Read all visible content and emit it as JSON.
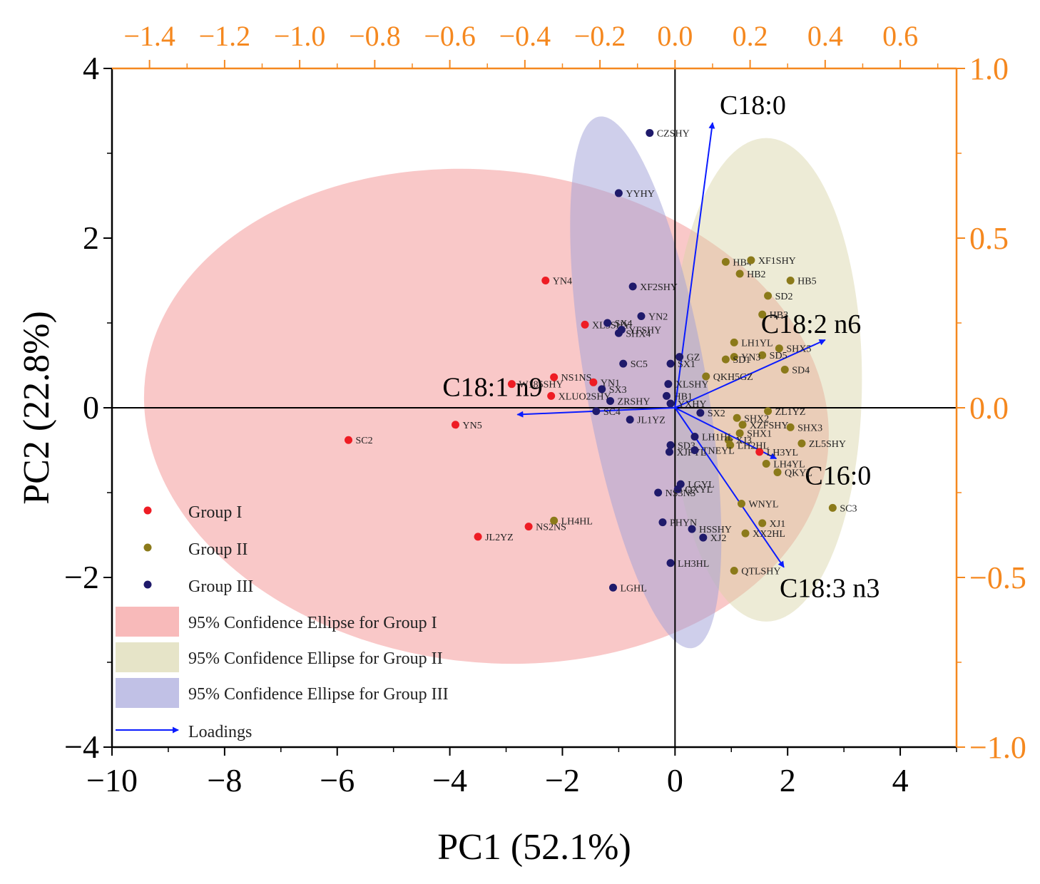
{
  "chart_data": {
    "type": "scatter",
    "subtype": "pca-biplot",
    "xlabel": "PC1 (52.1%)",
    "ylabel": "PC2 (22.8%)",
    "xlim": [
      -10,
      5
    ],
    "ylim": [
      -4,
      4
    ],
    "x_ticks": [
      -10,
      -8,
      -6,
      -4,
      -2,
      0,
      2,
      4
    ],
    "x_tick_labels": [
      "−10",
      "−8",
      "−6",
      "−4",
      "−2",
      "0",
      "2",
      "4"
    ],
    "y_ticks": [
      -4,
      -2,
      0,
      2,
      4
    ],
    "y_tick_labels": [
      "−4",
      "−2",
      "0",
      "2",
      "4"
    ],
    "secondary_axes": {
      "color": "#f5881f",
      "top_lim": [
        -1.5,
        0.75
      ],
      "top_ticks": [
        -1.4,
        -1.2,
        -1.0,
        -0.8,
        -0.6,
        -0.4,
        -0.2,
        0.0,
        0.2,
        0.4,
        0.6
      ],
      "top_tick_labels": [
        "−1.4",
        "−1.2",
        "−1.0",
        "−0.8",
        "−0.6",
        "−0.4",
        "−0.2",
        "0.0",
        "0.2",
        "0.4",
        "0.6"
      ],
      "right_lim": [
        -1.0,
        1.0
      ],
      "right_ticks": [
        -1.0,
        -0.5,
        0.0,
        0.5,
        1.0
      ],
      "right_tick_labels": [
        "−1.0",
        "−0.5",
        "0.0",
        "0.5",
        "1.0"
      ]
    },
    "groups": [
      {
        "name": "Group I",
        "color": "#ee1c24"
      },
      {
        "name": "Group II",
        "color": "#8b7a1a"
      },
      {
        "name": "Group III",
        "color": "#1f1a6b"
      }
    ],
    "points": [
      {
        "label": "SC2",
        "x": -5.8,
        "y": -0.38,
        "group": 0
      },
      {
        "label": "YN5",
        "x": -3.9,
        "y": -0.2,
        "group": 0
      },
      {
        "label": "W185SHY",
        "x": -2.9,
        "y": 0.28,
        "group": 0
      },
      {
        "label": "XLUO2SHY",
        "x": -2.2,
        "y": 0.14,
        "group": 0
      },
      {
        "label": "NS1NS",
        "x": -2.15,
        "y": 0.36,
        "group": 0
      },
      {
        "label": "YN4",
        "x": -2.3,
        "y": 1.5,
        "group": 0
      },
      {
        "label": "XL3SHY",
        "x": -1.6,
        "y": 0.98,
        "group": 0
      },
      {
        "label": "YN1",
        "x": -1.45,
        "y": 0.3,
        "group": 0
      },
      {
        "label": "JL2YZ",
        "x": -3.5,
        "y": -1.52,
        "group": 0
      },
      {
        "label": "NS2NS",
        "x": -2.6,
        "y": -1.4,
        "group": 0
      },
      {
        "label": "LH3YL",
        "x": 1.5,
        "y": -0.52,
        "group": 0
      },
      {
        "label": "LH4HL",
        "x": -2.15,
        "y": -1.33,
        "group": 1
      },
      {
        "label": "SC3",
        "x": 2.8,
        "y": -1.18,
        "group": 1
      },
      {
        "label": "HB4",
        "x": 0.9,
        "y": 1.72,
        "group": 1
      },
      {
        "label": "XF1SHY",
        "x": 1.35,
        "y": 1.74,
        "group": 1
      },
      {
        "label": "HB2",
        "x": 1.15,
        "y": 1.58,
        "group": 1
      },
      {
        "label": "HB5",
        "x": 2.05,
        "y": 1.5,
        "group": 1
      },
      {
        "label": "SD2",
        "x": 1.65,
        "y": 1.32,
        "group": 1
      },
      {
        "label": "HB3",
        "x": 1.55,
        "y": 1.1,
        "group": 1
      },
      {
        "label": "LH1YL",
        "x": 1.05,
        "y": 0.77,
        "group": 1
      },
      {
        "label": "SHX5",
        "x": 1.85,
        "y": 0.7,
        "group": 1
      },
      {
        "label": "SD5",
        "x": 1.55,
        "y": 0.62,
        "group": 1
      },
      {
        "label": "YN3",
        "x": 1.05,
        "y": 0.6,
        "group": 1
      },
      {
        "label": "SD4",
        "x": 1.95,
        "y": 0.45,
        "group": 1
      },
      {
        "label": "SD1",
        "x": 0.9,
        "y": 0.57,
        "group": 1
      },
      {
        "label": "QKH5GZ",
        "x": 0.55,
        "y": 0.37,
        "group": 1
      },
      {
        "label": "ZL1YZ",
        "x": 1.65,
        "y": -0.04,
        "group": 1
      },
      {
        "label": "SHX2",
        "x": 1.1,
        "y": -0.12,
        "group": 1
      },
      {
        "label": "XZFSHY",
        "x": 1.2,
        "y": -0.2,
        "group": 1
      },
      {
        "label": "SHX3",
        "x": 2.05,
        "y": -0.23,
        "group": 1
      },
      {
        "label": "SHX1",
        "x": 1.15,
        "y": -0.3,
        "group": 1
      },
      {
        "label": "ZL5SHY",
        "x": 2.25,
        "y": -0.42,
        "group": 1
      },
      {
        "label": "XJ3",
        "x": 0.95,
        "y": -0.38,
        "group": 1
      },
      {
        "label": "LH2HL",
        "x": 0.98,
        "y": -0.44,
        "group": 1
      },
      {
        "label": "LH4YL",
        "x": 1.62,
        "y": -0.66,
        "group": 1
      },
      {
        "label": "QKYL",
        "x": 1.82,
        "y": -0.76,
        "group": 1
      },
      {
        "label": "WNYL",
        "x": 1.18,
        "y": -1.13,
        "group": 1
      },
      {
        "label": "XJ1",
        "x": 1.55,
        "y": -1.36,
        "group": 1
      },
      {
        "label": "XX2HL",
        "x": 1.25,
        "y": -1.48,
        "group": 1
      },
      {
        "label": "QTLSHY",
        "x": 1.05,
        "y": -1.92,
        "group": 1
      },
      {
        "label": "CZSHY",
        "x": -0.45,
        "y": 3.24,
        "group": 2
      },
      {
        "label": "YYHY",
        "x": -1.0,
        "y": 2.53,
        "group": 2
      },
      {
        "label": "XF2SHY",
        "x": -0.75,
        "y": 1.43,
        "group": 2
      },
      {
        "label": "SX4",
        "x": -1.2,
        "y": 1.0,
        "group": 2
      },
      {
        "label": "YN2",
        "x": -0.6,
        "y": 1.08,
        "group": 2
      },
      {
        "label": "SHX4",
        "x": -1.0,
        "y": 0.88,
        "group": 2
      },
      {
        "label": "SC5",
        "x": -0.92,
        "y": 0.52,
        "group": 2
      },
      {
        "label": "YFSHY",
        "x": -0.95,
        "y": 0.92,
        "group": 2
      },
      {
        "label": "SX1",
        "x": -0.08,
        "y": 0.52,
        "group": 2
      },
      {
        "label": "GZ",
        "x": 0.08,
        "y": 0.6,
        "group": 2
      },
      {
        "label": "XLSHY",
        "x": -0.12,
        "y": 0.28,
        "group": 2
      },
      {
        "label": "SX3",
        "x": -1.3,
        "y": 0.22,
        "group": 2
      },
      {
        "label": "ZRSHY",
        "x": -1.15,
        "y": 0.08,
        "group": 2
      },
      {
        "label": "HB1",
        "x": -0.15,
        "y": 0.14,
        "group": 2
      },
      {
        "label": "YXHY",
        "x": -0.08,
        "y": 0.05,
        "group": 2
      },
      {
        "label": "SC4",
        "x": -1.4,
        "y": -0.04,
        "group": 2
      },
      {
        "label": "JL1YZ",
        "x": -0.8,
        "y": -0.14,
        "group": 2
      },
      {
        "label": "SX2",
        "x": 0.45,
        "y": -0.06,
        "group": 2
      },
      {
        "label": "LH1HL",
        "x": 0.35,
        "y": -0.34,
        "group": 2
      },
      {
        "label": "SD3",
        "x": -0.08,
        "y": -0.44,
        "group": 2
      },
      {
        "label": "XJFYL",
        "x": -0.1,
        "y": -0.52,
        "group": 2
      },
      {
        "label": "TNEYL",
        "x": 0.35,
        "y": -0.5,
        "group": 2
      },
      {
        "label": "LGYL",
        "x": 0.1,
        "y": -0.9,
        "group": 2
      },
      {
        "label": "QXYL",
        "x": 0.05,
        "y": -0.96,
        "group": 2
      },
      {
        "label": "NS3NS",
        "x": -0.3,
        "y": -1.0,
        "group": 2
      },
      {
        "label": "PHYN",
        "x": -0.22,
        "y": -1.35,
        "group": 2
      },
      {
        "label": "HSSHY",
        "x": 0.3,
        "y": -1.43,
        "group": 2
      },
      {
        "label": "XJ2",
        "x": 0.5,
        "y": -1.53,
        "group": 2
      },
      {
        "label": "LH3HL",
        "x": -0.08,
        "y": -1.83,
        "group": 2
      },
      {
        "label": "LGHL",
        "x": -1.1,
        "y": -2.12,
        "group": 2
      }
    ],
    "loadings": [
      {
        "name": "C18:0",
        "x": 0.1,
        "y": 0.84
      },
      {
        "name": "C18:2 n6",
        "x": 0.4,
        "y": 0.2
      },
      {
        "name": "C18:1 n9",
        "x": -0.42,
        "y": -0.02
      },
      {
        "name": "C16:0",
        "x": 0.27,
        "y": -0.15
      },
      {
        "name": "C18:3 n3",
        "x": 0.29,
        "y": -0.47
      }
    ],
    "ellipses": [
      {
        "name": "95% Confidence Ellipse for Group I",
        "group": 0,
        "cx": -3.35,
        "cy": -0.1,
        "rx": 6.1,
        "ry": 2.9,
        "angle_deg": 6.5
      },
      {
        "name": "95% Confidence Ellipse for Group II",
        "group": 1,
        "cx": 1.62,
        "cy": 0.33,
        "rx": 1.7,
        "ry": 2.85,
        "angle_deg": 0
      },
      {
        "name": "95% Confidence Ellipse for Group III",
        "group": 2,
        "cx": -0.52,
        "cy": 0.3,
        "rx": 1.07,
        "ry": 3.18,
        "angle_deg": -10
      }
    ],
    "legend": {
      "position": "bottom-left",
      "items": [
        {
          "label": "Group I",
          "kind": "marker",
          "group": 0
        },
        {
          "label": "Group II",
          "kind": "marker",
          "group": 1
        },
        {
          "label": "Group III",
          "kind": "marker",
          "group": 2
        },
        {
          "label": "95% Confidence Ellipse for Group I",
          "kind": "patch",
          "group": 0
        },
        {
          "label": "95% Confidence Ellipse for Group II",
          "kind": "patch",
          "group": 1
        },
        {
          "label": "95% Confidence Ellipse for Group III",
          "kind": "patch",
          "group": 2
        },
        {
          "label": "Loadings",
          "kind": "arrow"
        }
      ]
    },
    "colors": {
      "loading": "#0a1bff",
      "ellipse_fills": [
        "#f5a3a3",
        "#d6d2a3",
        "#9f9fd8"
      ]
    }
  }
}
